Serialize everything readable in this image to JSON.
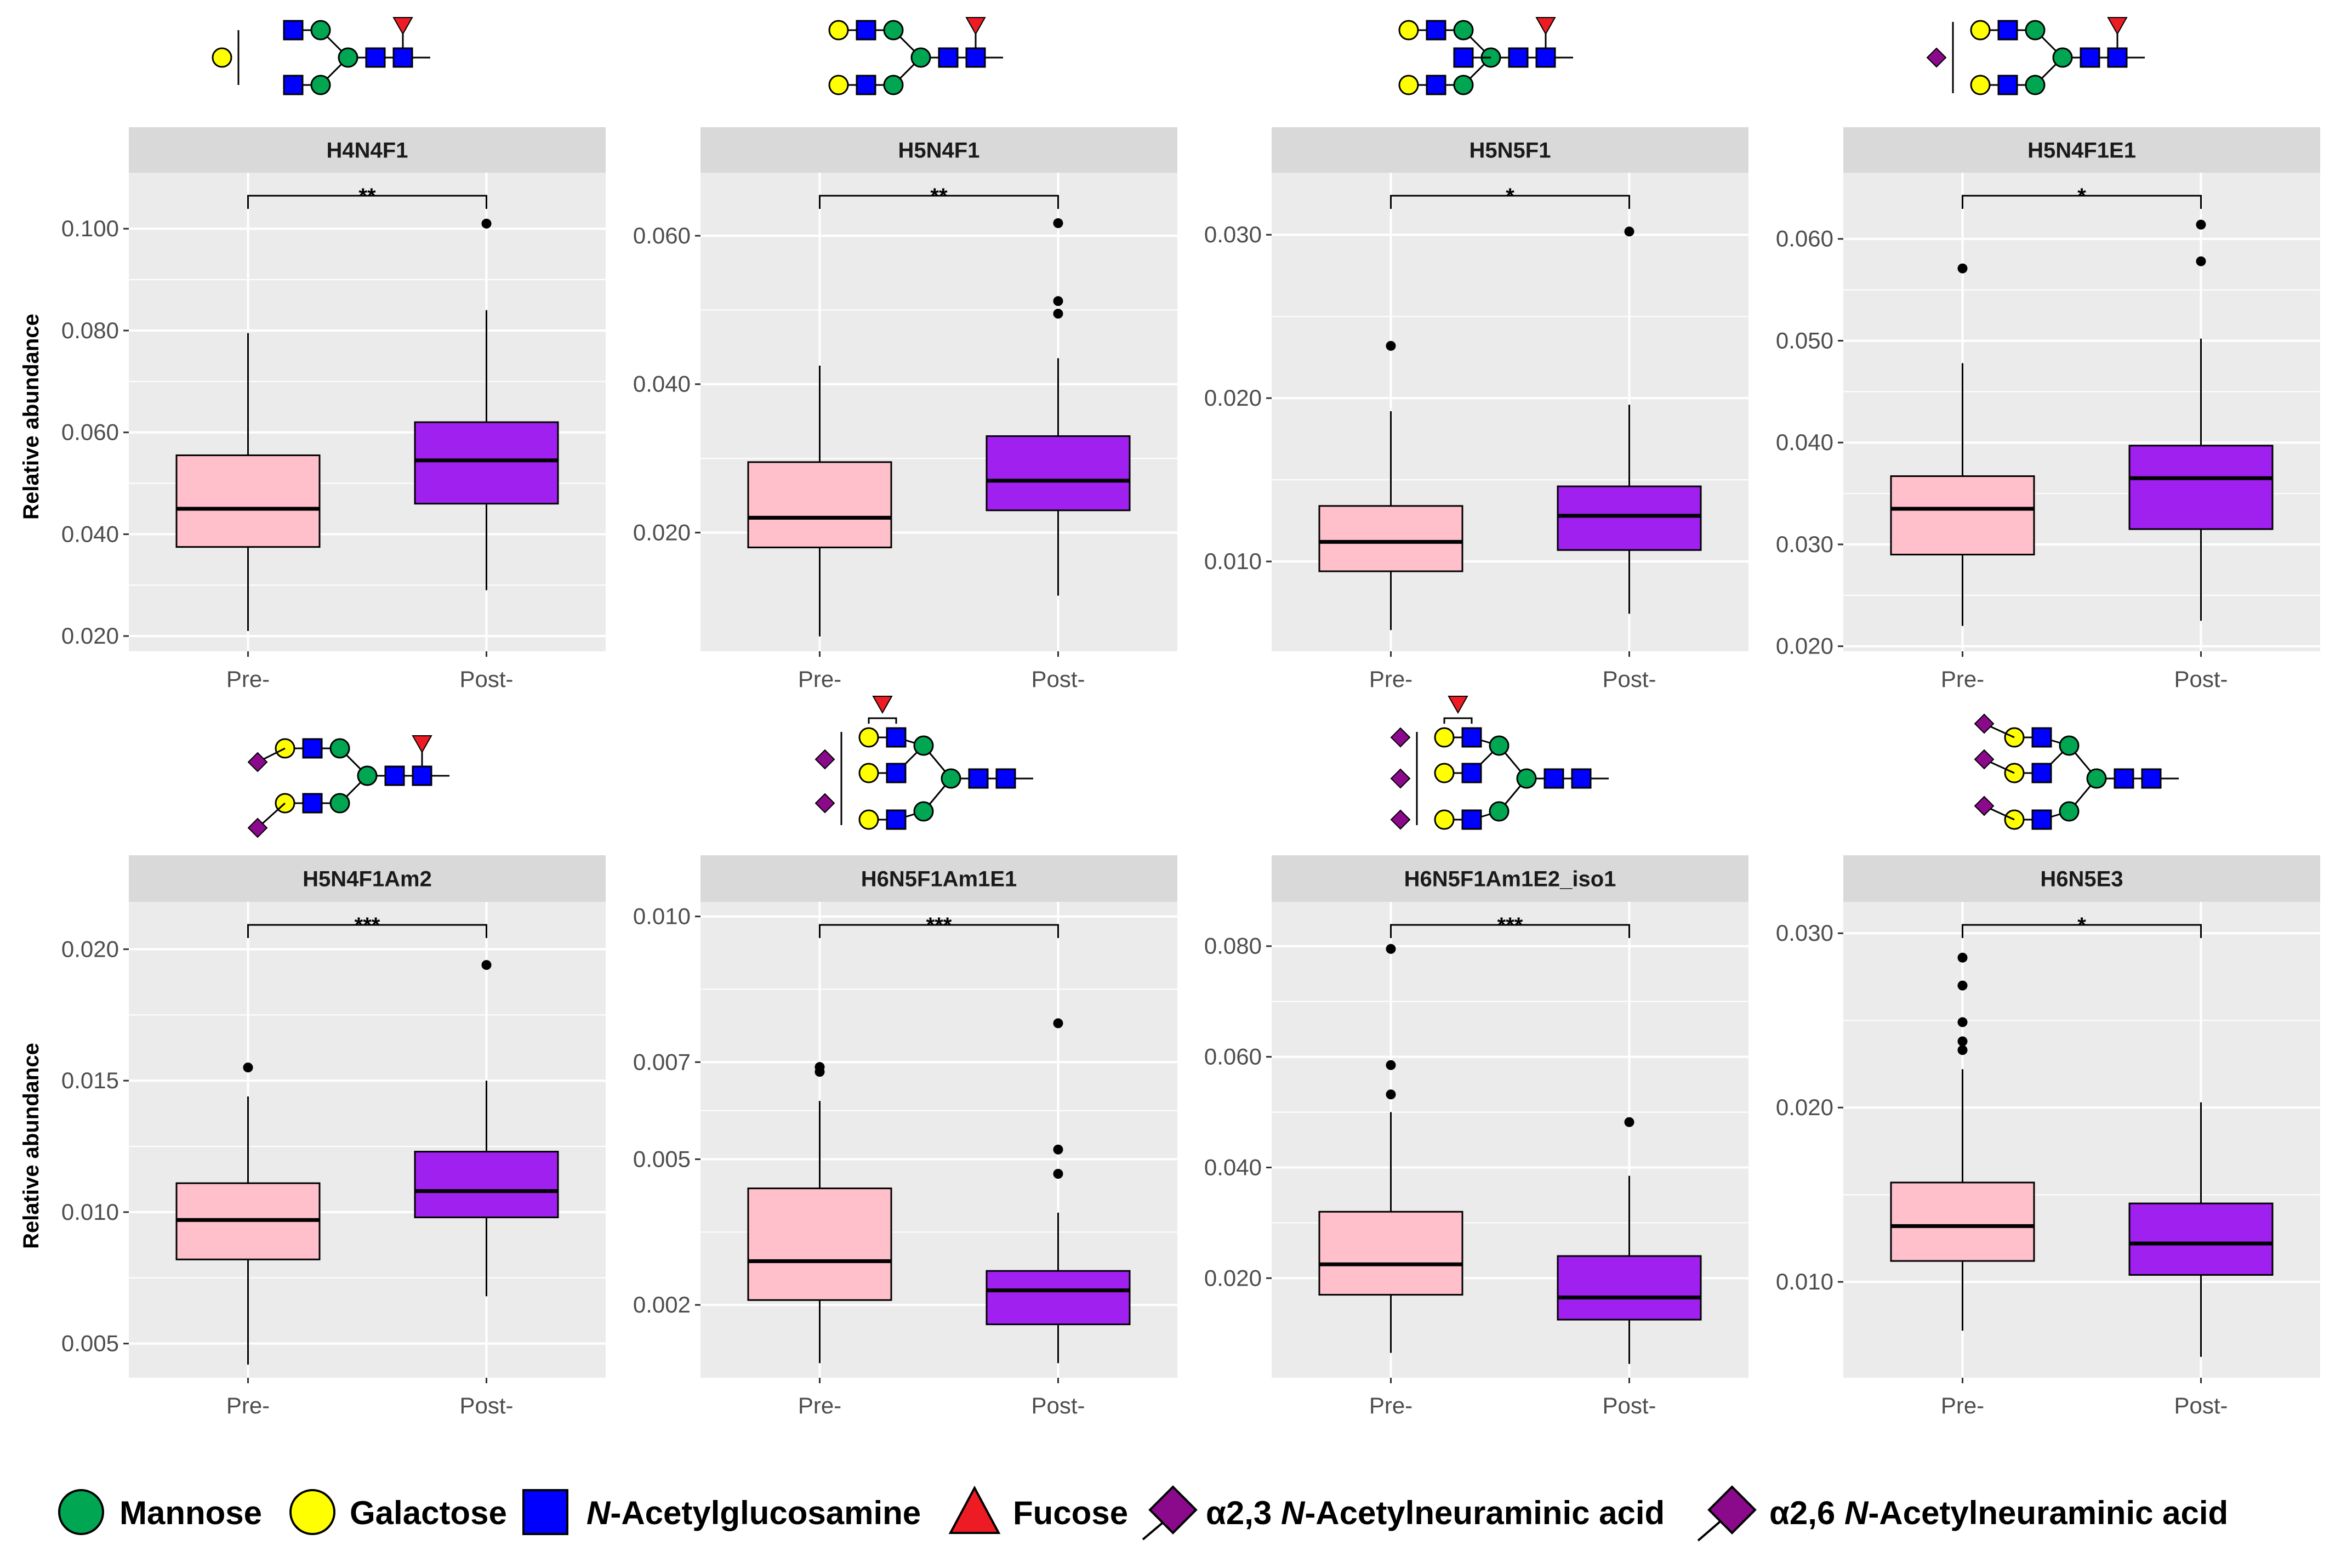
{
  "colors": {
    "pre": "#FFC0CB",
    "post": "#A020F0",
    "panel_bg": "#EBEBEB",
    "strip_bg": "#D9D9D9",
    "mannose": "#00A651",
    "galactose": "#FFFF00",
    "glcnac": "#0000FF",
    "fucose": "#ED1C24",
    "neuac": "#8B0A8B"
  },
  "y_axis_label": "Relative abundance",
  "glycan_icons": [
    "biantennary-monogalactosylated-core-fucosylated-glycan-icon",
    "biantennary-digalactosylated-core-fucosylated-glycan-icon",
    "bisected-digalactosylated-core-fucosylated-glycan-icon",
    "monosialylated-a26-core-fucosylated-glycan-icon",
    "disialylated-a23-core-fucosylated-glycan-icon",
    "triantennary-disialylated-antenna-fucosylated-glycan-icon",
    "triantennary-trisialylated-antenna-fucosylated-glycan-icon",
    "triantennary-trisialylated-a26-glycan-icon"
  ],
  "chart_data": [
    {
      "type": "box",
      "title": "H4N4F1",
      "categories": [
        "Pre-",
        "Post-"
      ],
      "ylim": [
        0.017,
        0.111
      ],
      "yticks": [
        0.02,
        0.04,
        0.06,
        0.08,
        0.1
      ],
      "yticklabels": [
        "0.020",
        "0.040",
        "0.060",
        "0.080",
        "0.100"
      ],
      "significance": "**",
      "boxes": [
        {
          "group": "Pre-",
          "whisker_low": 0.021,
          "q1": 0.0375,
          "median": 0.045,
          "q3": 0.0555,
          "whisker_high": 0.0795,
          "outliers": []
        },
        {
          "group": "Post-",
          "whisker_low": 0.029,
          "q1": 0.046,
          "median": 0.0545,
          "q3": 0.062,
          "whisker_high": 0.084,
          "outliers": [
            0.101
          ]
        }
      ]
    },
    {
      "type": "box",
      "title": "H5N4F1",
      "categories": [
        "Pre-",
        "Post-"
      ],
      "ylim": [
        0.004,
        0.0685
      ],
      "yticks": [
        0.02,
        0.04,
        0.06
      ],
      "yticklabels": [
        "0.020",
        "0.040",
        "0.060"
      ],
      "significance": "**",
      "boxes": [
        {
          "group": "Pre-",
          "whisker_low": 0.006,
          "q1": 0.018,
          "median": 0.022,
          "q3": 0.0295,
          "whisker_high": 0.0425,
          "outliers": []
        },
        {
          "group": "Post-",
          "whisker_low": 0.0115,
          "q1": 0.023,
          "median": 0.027,
          "q3": 0.033,
          "whisker_high": 0.0435,
          "outliers": [
            0.0495,
            0.0512,
            0.0617
          ]
        }
      ]
    },
    {
      "type": "box",
      "title": "H5N5F1",
      "categories": [
        "Pre-",
        "Post-"
      ],
      "ylim": [
        0.0045,
        0.0338
      ],
      "yticks": [
        0.01,
        0.02,
        0.03
      ],
      "yticklabels": [
        "0.010",
        "0.020",
        "0.030"
      ],
      "significance": "*",
      "boxes": [
        {
          "group": "Pre-",
          "whisker_low": 0.0058,
          "q1": 0.0094,
          "median": 0.0112,
          "q3": 0.0134,
          "whisker_high": 0.0192,
          "outliers": [
            0.0232
          ]
        },
        {
          "group": "Post-",
          "whisker_low": 0.0068,
          "q1": 0.0107,
          "median": 0.0128,
          "q3": 0.0146,
          "whisker_high": 0.0196,
          "outliers": [
            0.0302
          ]
        }
      ]
    },
    {
      "type": "box",
      "title": "H5N4F1E1",
      "categories": [
        "Pre-",
        "Post-"
      ],
      "ylim": [
        0.0195,
        0.0665
      ],
      "yticks": [
        0.02,
        0.03,
        0.04,
        0.05,
        0.06
      ],
      "yticklabels": [
        "0.020",
        "0.030",
        "0.040",
        "0.050",
        "0.060"
      ],
      "significance": "*",
      "boxes": [
        {
          "group": "Pre-",
          "whisker_low": 0.022,
          "q1": 0.029,
          "median": 0.0335,
          "q3": 0.0367,
          "whisker_high": 0.0478,
          "outliers": [
            0.0571
          ]
        },
        {
          "group": "Post-",
          "whisker_low": 0.0225,
          "q1": 0.0315,
          "median": 0.0365,
          "q3": 0.0397,
          "whisker_high": 0.0502,
          "outliers": [
            0.0578,
            0.0614
          ]
        }
      ]
    },
    {
      "type": "box",
      "title": "H5N4F1Am2",
      "categories": [
        "Pre-",
        "Post-"
      ],
      "ylim": [
        0.0037,
        0.0218
      ],
      "yticks": [
        0.005,
        0.01,
        0.015,
        0.02
      ],
      "yticklabels": [
        "0.005",
        "0.010",
        "0.015",
        "0.020"
      ],
      "significance": "***",
      "boxes": [
        {
          "group": "Pre-",
          "whisker_low": 0.0042,
          "q1": 0.0082,
          "median": 0.0097,
          "q3": 0.0111,
          "whisker_high": 0.0144,
          "outliers": [
            0.0155
          ]
        },
        {
          "group": "Post-",
          "whisker_low": 0.0068,
          "q1": 0.0098,
          "median": 0.0108,
          "q3": 0.0123,
          "whisker_high": 0.015,
          "outliers": [
            0.0194
          ]
        }
      ]
    },
    {
      "type": "box",
      "title": "H6N5F1Am1E1",
      "categories": [
        "Pre-",
        "Post-"
      ],
      "ylim": [
        0.0005,
        0.0103
      ],
      "yticks": [
        0.002,
        0.005,
        0.007,
        0.01
      ],
      "yticklabels": [
        "0.002",
        "0.005",
        "0.007",
        "0.010"
      ],
      "significance": "***",
      "boxes": [
        {
          "group": "Pre-",
          "whisker_low": 0.0008,
          "q1": 0.0021,
          "median": 0.0029,
          "q3": 0.0044,
          "whisker_high": 0.0062,
          "outliers": [
            0.0068,
            0.0069
          ]
        },
        {
          "group": "Post-",
          "whisker_low": 0.0008,
          "q1": 0.0016,
          "median": 0.0023,
          "q3": 0.0027,
          "whisker_high": 0.0039,
          "outliers": [
            0.0047,
            0.0052,
            0.0078
          ]
        }
      ]
    },
    {
      "type": "box",
      "title": "H6N5F1Am1E2_iso1",
      "categories": [
        "Pre-",
        "Post-"
      ],
      "ylim": [
        0.002,
        0.088
      ],
      "yticks": [
        0.02,
        0.04,
        0.06,
        0.08
      ],
      "yticklabels": [
        "0.020",
        "0.040",
        "0.060",
        "0.080"
      ],
      "significance": "***",
      "boxes": [
        {
          "group": "Pre-",
          "whisker_low": 0.0065,
          "q1": 0.017,
          "median": 0.0225,
          "q3": 0.032,
          "whisker_high": 0.05,
          "outliers": [
            0.0532,
            0.0585,
            0.0795
          ]
        },
        {
          "group": "Post-",
          "whisker_low": 0.0045,
          "q1": 0.0125,
          "median": 0.0165,
          "q3": 0.024,
          "whisker_high": 0.0385,
          "outliers": [
            0.0482
          ]
        }
      ]
    },
    {
      "type": "box",
      "title": "H6N5E3",
      "categories": [
        "Pre-",
        "Post-"
      ],
      "ylim": [
        0.0045,
        0.0318
      ],
      "yticks": [
        0.01,
        0.02,
        0.03
      ],
      "yticklabels": [
        "0.010",
        "0.020",
        "0.030"
      ],
      "significance": "*",
      "boxes": [
        {
          "group": "Pre-",
          "whisker_low": 0.0072,
          "q1": 0.0112,
          "median": 0.0132,
          "q3": 0.0157,
          "whisker_high": 0.0222,
          "outliers": [
            0.0233,
            0.0238,
            0.0249,
            0.027,
            0.0286
          ]
        },
        {
          "group": "Post-",
          "whisker_low": 0.0057,
          "q1": 0.0104,
          "median": 0.0122,
          "q3": 0.0145,
          "whisker_high": 0.0203,
          "outliers": []
        }
      ]
    }
  ],
  "legend": {
    "mannose": "Mannose",
    "galactose": "Galactose",
    "glcnac_prefix": "N",
    "glcnac_suffix": "-Acetylglucosamine",
    "fucose": "Fucose",
    "a23_prefix": "α2,3 ",
    "a23_italic": "N",
    "a23_suffix": "-Acetylneuraminic acid",
    "a26_prefix": "α2,6 ",
    "a26_italic": "N",
    "a26_suffix": "-Acetylneuraminic acid"
  }
}
